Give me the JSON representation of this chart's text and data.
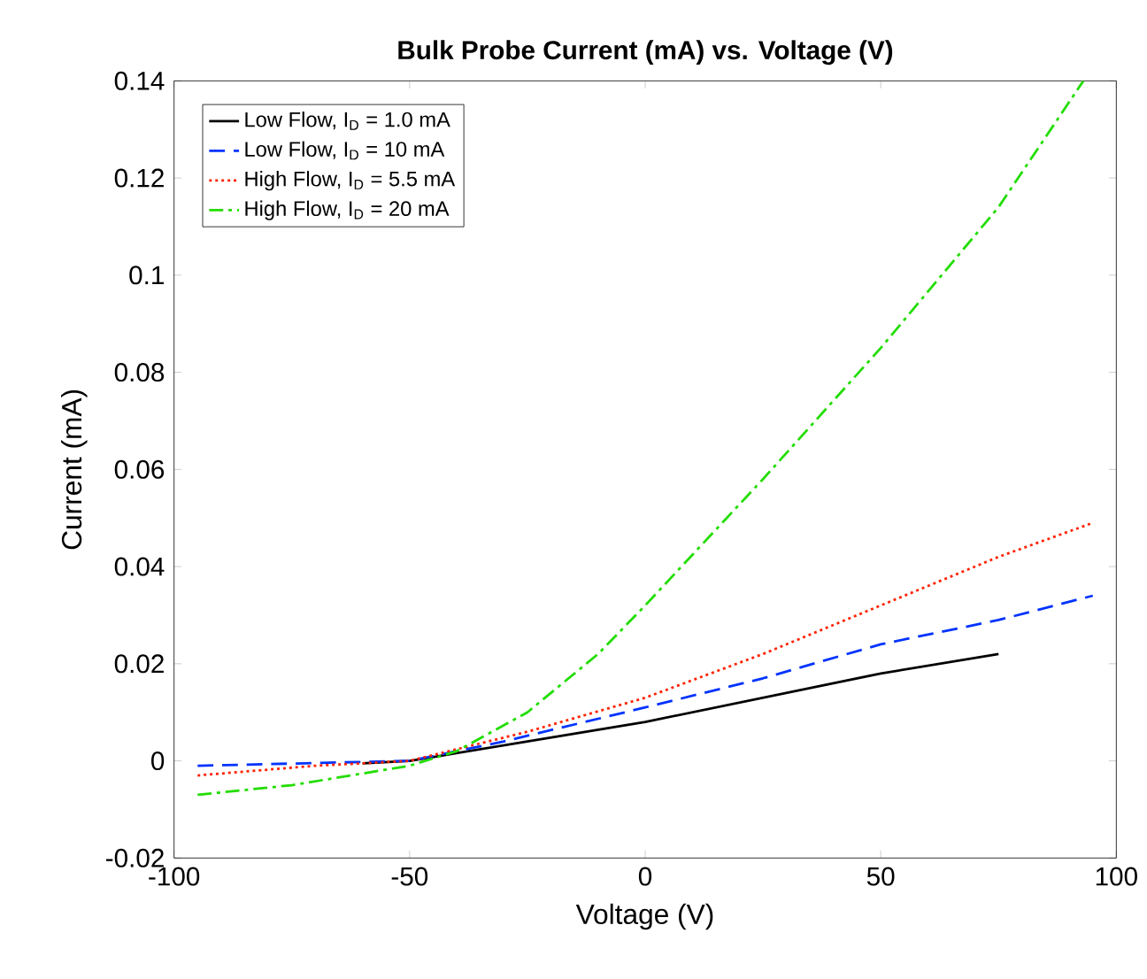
{
  "chart_data": {
    "type": "line",
    "title": "Bulk Probe Current (mA) vs. Voltage (V)",
    "xlabel": "Voltage (V)",
    "ylabel": "Current (mA)",
    "xlim": [
      -100,
      100
    ],
    "ylim": [
      -0.02,
      0.14
    ],
    "xticks": [
      -100,
      -50,
      0,
      50,
      100
    ],
    "yticks": [
      -0.02,
      0,
      0.02,
      0.04,
      0.06,
      0.08,
      0.1,
      0.12,
      0.14
    ],
    "grid": false,
    "legend": "top left",
    "marker": "none",
    "series": [
      {
        "name": "Low Flow, I$_{D}$ = 1.0 mA",
        "color": "#000000",
        "line_style": "solid",
        "x": [
          -60,
          -50,
          -25,
          0,
          25,
          50,
          75
        ],
        "values": [
          -0.0005,
          0,
          0.004,
          0.008,
          0.013,
          0.018,
          0.022
        ]
      },
      {
        "name": "Low Flow, I$_{D}$ = 10 mA",
        "color": "#0033ff",
        "line_style": "dashed",
        "x": [
          -95,
          -50,
          -30,
          0,
          25,
          50,
          75,
          95
        ],
        "values": [
          -0.001,
          0,
          0.004,
          0.011,
          0.017,
          0.024,
          0.029,
          0.034
        ]
      },
      {
        "name": "High Flow, I$_{D}$ = 5.5 mA",
        "color": "#ff2200",
        "line_style": "dotted",
        "x": [
          -95,
          -70,
          -50,
          -25,
          0,
          25,
          50,
          75,
          95
        ],
        "values": [
          -0.003,
          -0.001,
          0,
          0.006,
          0.013,
          0.022,
          0.032,
          0.042,
          0.049
        ]
      },
      {
        "name": "High Flow, I$_{D}$ = 20 mA",
        "color": "#22dd00",
        "line_style": "dashdot",
        "x": [
          -95,
          -75,
          -50,
          -40,
          -25,
          -10,
          0,
          25,
          50,
          75,
          93
        ],
        "values": [
          -0.007,
          -0.005,
          -0.001,
          0.002,
          0.01,
          0.022,
          0.032,
          0.058,
          0.085,
          0.114,
          0.14
        ]
      }
    ]
  }
}
